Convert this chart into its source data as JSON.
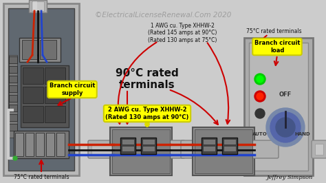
{
  "bg_color": "#cccccc",
  "title_text": "©ElectricalLicenseRenewal.Com 2020",
  "title_color": "#999999",
  "title_fontsize": 7.5,
  "author_text": "Jeffrey Simpson",
  "author_fontsize": 6.5,
  "wire1_label": "1 AWG cu. Type XHHW-2\n(Rated 145 amps at 90°C)\n(Rated 130 amps at 75°C)",
  "wire2_label": "2 AWG cu. Type XHHW-2\n(Rated 130 amps at 90°C)",
  "terminal_90": "90°C rated\nterminals",
  "terminal_75_left": "75°C rated terminals",
  "terminal_75_right": "75°C rated terminals",
  "supply_label": "Branch circuit\nsupply",
  "load_label": "Branch circuit\nload",
  "yellow": "#ffff00",
  "red_arrow": "#cc0000",
  "wire_red": "#cc2200",
  "wire_blue": "#2244cc",
  "wire_black": "#111111",
  "panel_outer": "#aaaaaa",
  "panel_inner_dark": "#555555",
  "panel_inner_light": "#888888",
  "conduit_body_color": "#909090",
  "conduit_body_inner": "#606060",
  "right_box_outer": "#aaaaaa",
  "right_box_inner": "#b8b8b8"
}
